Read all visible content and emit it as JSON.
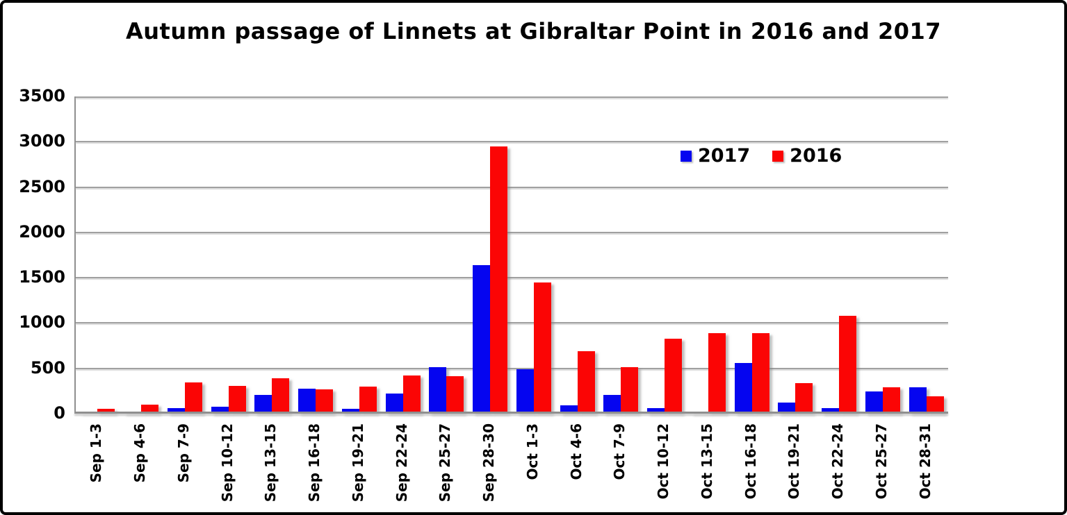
{
  "title": "Autumn passage of Linnets at Gibraltar Point in 2016 and 2017",
  "legend": {
    "items": [
      {
        "label": "2017",
        "color": "#0505f0"
      },
      {
        "label": "2016",
        "color": "#fb0505"
      }
    ]
  },
  "y_axis": {
    "tick_labels": [
      "0",
      "500",
      "1000",
      "1500",
      "2000",
      "2500",
      "3000",
      "3500"
    ]
  },
  "colors": {
    "series_2017": "#0505f0",
    "series_2016": "#fb0505",
    "gridline": "#a0a0a0",
    "axis": "#8f8f8f",
    "frame": "#000000",
    "background": "#ffffff",
    "text": "#000000"
  },
  "chart_data": {
    "type": "bar",
    "title": "Autumn passage of Linnets at Gibraltar Point in 2016 and 2017",
    "categories": [
      "Sep 1-3",
      "Sep 4-6",
      "Sep 7-9",
      "Sep 10-12",
      "Sep 13-15",
      "Sep 16-18",
      "Sep 19-21",
      "Sep 22-24",
      "Sep 25-27",
      "Sep 28-30",
      "Oct 1-3",
      "Oct 4-6",
      "Oct 7-9",
      "Oct 10-12",
      "Oct 13-15",
      "Oct 16-18",
      "Oct 19-21",
      "Oct 22-24",
      "Oct 25-27",
      "Oct 28-31"
    ],
    "series": [
      {
        "name": "2017",
        "color": "#0505f0",
        "values": [
          10,
          20,
          65,
          75,
          210,
          275,
          55,
          220,
          515,
          1640,
          490,
          95,
          210,
          65,
          15,
          560,
          120,
          65,
          245,
          290
        ]
      },
      {
        "name": "2016",
        "color": "#fb0505",
        "values": [
          55,
          100,
          345,
          305,
          390,
          265,
          295,
          420,
          415,
          2950,
          1450,
          690,
          515,
          830,
          890,
          890,
          335,
          1080,
          290,
          190
        ]
      }
    ],
    "xlabel": "",
    "ylabel": "",
    "ylim": [
      0,
      3500
    ],
    "y_tick_step": 500,
    "grid": true,
    "legend_position": "inside-top-right"
  }
}
